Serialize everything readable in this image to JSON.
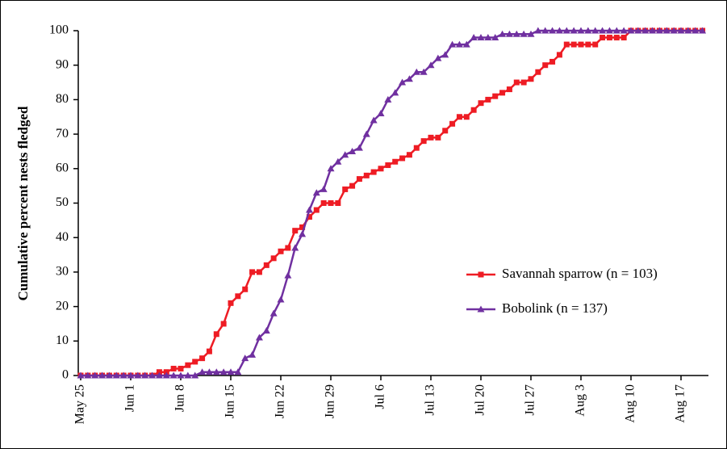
{
  "chart_data": {
    "type": "line",
    "ylabel": "Cumulative percent nests fledged",
    "categories": [
      "May 25",
      null,
      null,
      null,
      null,
      null,
      null,
      "Jun 1",
      null,
      null,
      null,
      null,
      null,
      null,
      "Jun 8",
      null,
      null,
      null,
      null,
      null,
      null,
      "Jun 15",
      null,
      null,
      null,
      null,
      null,
      null,
      "Jun 22",
      null,
      null,
      null,
      null,
      null,
      null,
      "Jun 29",
      null,
      null,
      null,
      null,
      null,
      null,
      "Jul 6",
      null,
      null,
      null,
      null,
      null,
      null,
      "Jul 13",
      null,
      null,
      null,
      null,
      null,
      null,
      "Jul 20",
      null,
      null,
      null,
      null,
      null,
      null,
      "Jul 27",
      null,
      null,
      null,
      null,
      null,
      null,
      "Aug 3",
      null,
      null,
      null,
      null,
      null,
      null,
      "Aug 10",
      null,
      null,
      null,
      null,
      null,
      null,
      "Aug 17",
      null,
      null,
      null
    ],
    "series": [
      {
        "name": "Savannah sparrow (n = 103)",
        "color": "#ee1c24",
        "marker": "square",
        "values": [
          0,
          0,
          0,
          0,
          0,
          0,
          0,
          0,
          0,
          0,
          0,
          1,
          1,
          2,
          2,
          3,
          4,
          5,
          7,
          12,
          15,
          21,
          23,
          25,
          30,
          30,
          32,
          34,
          36,
          37,
          42,
          43,
          46,
          48,
          50,
          50,
          50,
          54,
          55,
          57,
          58,
          59,
          60,
          61,
          62,
          63,
          64,
          66,
          68,
          69,
          69,
          71,
          73,
          75,
          75,
          77,
          79,
          80,
          81,
          82,
          83,
          85,
          85,
          86,
          88,
          90,
          91,
          93,
          96,
          96,
          96,
          96,
          96,
          98,
          98,
          98,
          98,
          100,
          100,
          100,
          100,
          100,
          100,
          100,
          100,
          100,
          100,
          100
        ]
      },
      {
        "name": "Bobolink (n = 137)",
        "color": "#7030a0",
        "marker": "triangle",
        "values": [
          0,
          0,
          0,
          0,
          0,
          0,
          0,
          0,
          0,
          0,
          0,
          0,
          0,
          0,
          0,
          0,
          0,
          1,
          1,
          1,
          1,
          1,
          1,
          5,
          6,
          11,
          13,
          18,
          22,
          29,
          37,
          41,
          48,
          53,
          54,
          60,
          62,
          64,
          65,
          66,
          70,
          74,
          76,
          80,
          82,
          85,
          86,
          88,
          88,
          90,
          92,
          93,
          96,
          96,
          96,
          98,
          98,
          98,
          98,
          99,
          99,
          99,
          99,
          99,
          100,
          100,
          100,
          100,
          100,
          100,
          100,
          100,
          100,
          100,
          100,
          100,
          100,
          100,
          100,
          100,
          100,
          100,
          100,
          100,
          100,
          100,
          100,
          100
        ]
      }
    ],
    "ylim": [
      0,
      100
    ],
    "yticks": [
      0,
      10,
      20,
      30,
      40,
      50,
      60,
      70,
      80,
      90,
      100
    ],
    "grid": false,
    "legend": "right"
  }
}
